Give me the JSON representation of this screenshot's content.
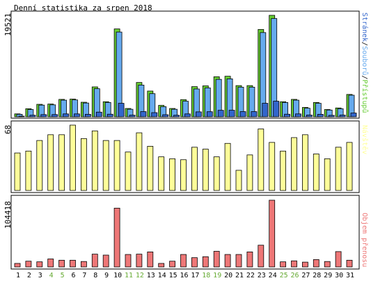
{
  "page_title": "Denní statistika za srpen 2018",
  "colors": {
    "background": "#ffffff",
    "panel_border": "#000000",
    "hits": "#66cc33",
    "files": "#66aaee",
    "pages": "#3366cc",
    "visits": "#ffff99",
    "volume": "#ee7777",
    "weekend_day": "#66aa33",
    "weekday": "#000000"
  },
  "chart_data": [
    {
      "type": "bar",
      "name": "hits-files-pages",
      "side_label": {
        "parts": [
          {
            "text": "Stránek",
            "color_key": "pages"
          },
          {
            "text": "/",
            "color_key": "weekday"
          },
          {
            "text": "Souborů",
            "color_key": "files"
          },
          {
            "text": "/",
            "color_key": "weekday"
          },
          {
            "text": "Přístupů",
            "color_key": "hits"
          }
        ]
      },
      "max_label": "19521",
      "ylim": [
        0,
        19521
      ],
      "categories": [
        "1",
        "2",
        "3",
        "4",
        "5",
        "6",
        "7",
        "8",
        "9",
        "10",
        "11",
        "12",
        "13",
        "14",
        "15",
        "16",
        "17",
        "18",
        "19",
        "20",
        "21",
        "22",
        "23",
        "24",
        "25",
        "26",
        "27",
        "28",
        "29",
        "30",
        "31"
      ],
      "series": [
        {
          "name": "Přístupů",
          "color_key": "hits",
          "values": [
            560,
            1550,
            2400,
            2450,
            3350,
            3400,
            2800,
            5750,
            2900,
            16900,
            1600,
            6600,
            4950,
            2200,
            1600,
            3300,
            5800,
            5950,
            7700,
            7800,
            6000,
            6000,
            16800,
            19521,
            2900,
            3350,
            1800,
            2750,
            1400,
            1700,
            4300
          ]
        },
        {
          "name": "Souborů",
          "color_key": "files",
          "values": [
            480,
            1400,
            2250,
            2300,
            3200,
            3250,
            2650,
            5400,
            2750,
            16300,
            1450,
            6100,
            4450,
            1950,
            1450,
            3000,
            5350,
            5550,
            7200,
            7300,
            5700,
            5700,
            16200,
            18900,
            2750,
            3200,
            1650,
            2600,
            1300,
            1550,
            4150
          ]
        },
        {
          "name": "Stránek",
          "color_key": "pages",
          "values": [
            120,
            300,
            420,
            430,
            560,
            560,
            480,
            900,
            500,
            2600,
            310,
            1000,
            800,
            400,
            300,
            560,
            950,
            980,
            1250,
            1260,
            1000,
            1000,
            2600,
            3000,
            500,
            560,
            330,
            480,
            280,
            320,
            720
          ]
        }
      ]
    },
    {
      "type": "bar",
      "name": "visits",
      "side_label": {
        "parts": [
          {
            "text": "Návštěv",
            "color_key": "visits"
          }
        ]
      },
      "max_label": "68",
      "ylim": [
        0,
        68
      ],
      "categories": [
        "1",
        "2",
        "3",
        "4",
        "5",
        "6",
        "7",
        "8",
        "9",
        "10",
        "11",
        "12",
        "13",
        "14",
        "15",
        "16",
        "17",
        "18",
        "19",
        "20",
        "21",
        "22",
        "23",
        "24",
        "25",
        "26",
        "27",
        "28",
        "29",
        "30",
        "31"
      ],
      "series": [
        {
          "name": "Návštěv",
          "color_key": "visits",
          "values": [
            39,
            41,
            52,
            58,
            58,
            68,
            54,
            62,
            52,
            52,
            40,
            60,
            46,
            35,
            33,
            32,
            45,
            43,
            35,
            49,
            21,
            37,
            64,
            50,
            41,
            55,
            58,
            38,
            33,
            45,
            50
          ]
        }
      ]
    },
    {
      "type": "bar",
      "name": "volume",
      "side_label": {
        "parts": [
          {
            "text": "Objem přenosu",
            "color_key": "volume"
          }
        ]
      },
      "max_label": "104418",
      "ylim": [
        0,
        104418
      ],
      "categories": [
        "1",
        "2",
        "3",
        "4",
        "5",
        "6",
        "7",
        "8",
        "9",
        "10",
        "11",
        "12",
        "13",
        "14",
        "15",
        "16",
        "17",
        "18",
        "19",
        "20",
        "21",
        "22",
        "23",
        "24",
        "25",
        "26",
        "27",
        "28",
        "29",
        "30",
        "31"
      ],
      "series": [
        {
          "name": "Objem přenosu",
          "color_key": "volume",
          "values": [
            5500,
            9000,
            8000,
            12500,
            10500,
            10500,
            8500,
            20000,
            18500,
            92000,
            19500,
            20000,
            23500,
            5500,
            9000,
            19500,
            14500,
            16000,
            24500,
            19500,
            19500,
            23500,
            34000,
            104418,
            8000,
            9500,
            7500,
            11500,
            8500,
            24000,
            10500
          ]
        }
      ]
    }
  ],
  "x_axis": {
    "labels": [
      "1",
      "2",
      "3",
      "4",
      "5",
      "6",
      "7",
      "8",
      "9",
      "10",
      "11",
      "12",
      "13",
      "14",
      "15",
      "16",
      "17",
      "18",
      "19",
      "20",
      "21",
      "22",
      "23",
      "24",
      "25",
      "26",
      "27",
      "28",
      "29",
      "30",
      "31"
    ],
    "weekend_days": [
      "4",
      "5",
      "11",
      "12",
      "18",
      "19",
      "25",
      "26"
    ]
  }
}
